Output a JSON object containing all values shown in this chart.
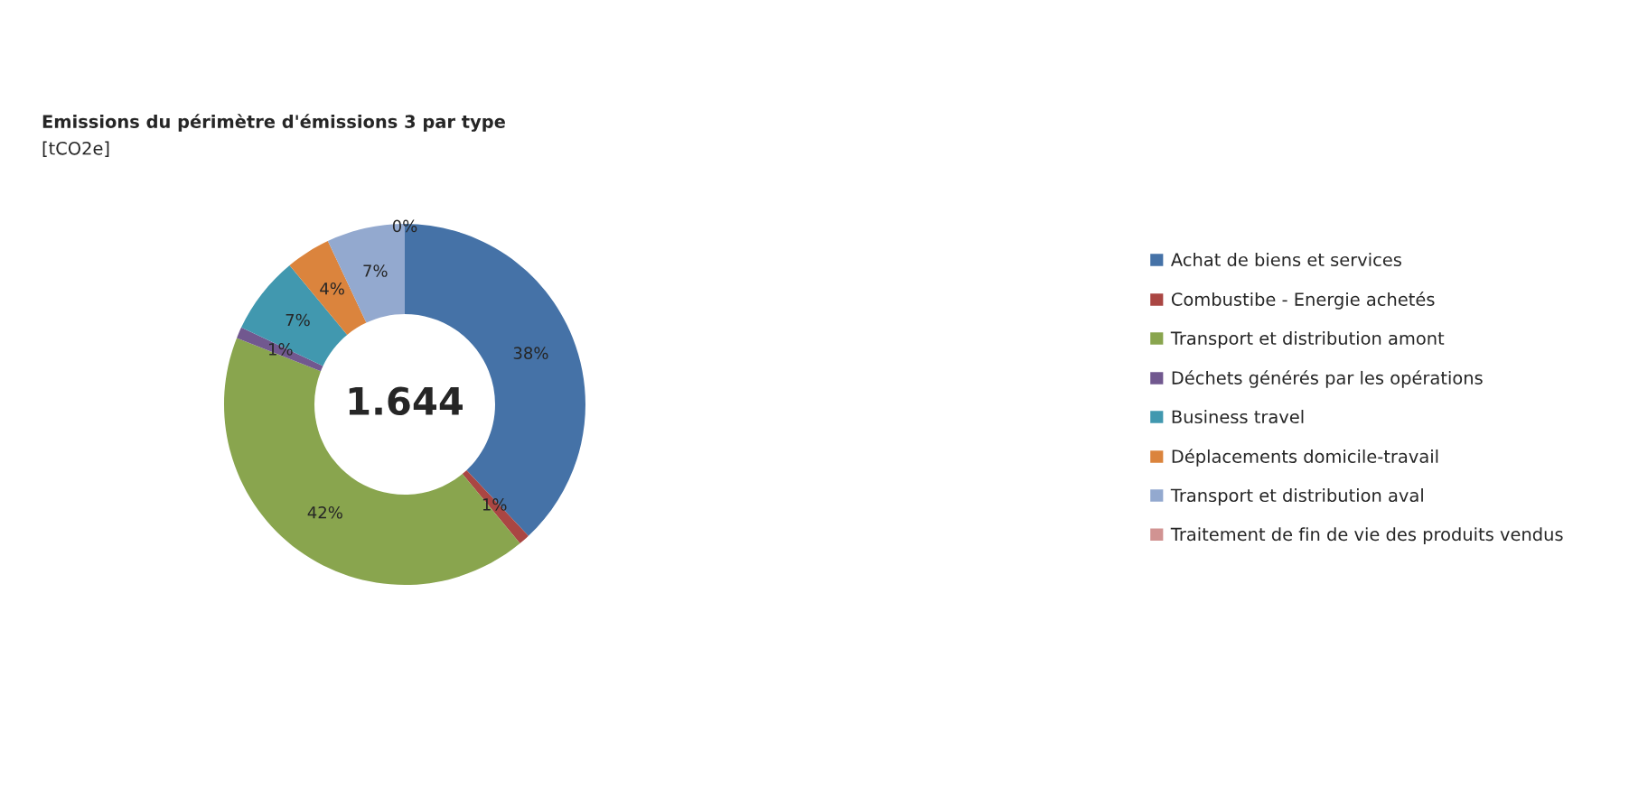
{
  "chart_data": {
    "type": "donut",
    "title": "Emissions du périmètre d'émissions 3 par type",
    "subtitle": "[tCO2e]",
    "categories": [
      "Achat de biens et services",
      "Combustibe - Energie achetés",
      "Transport et distribution amont",
      "Déchets générés par les opérations",
      "Business travel",
      "Déplacements domicile-travail",
      "Transport et distribution aval",
      "Traitement de fin de vie des produits vendus"
    ],
    "values": [
      38,
      1,
      42,
      1,
      7,
      4,
      7,
      0
    ],
    "value_labels": [
      "38%",
      "1%",
      "42%",
      "1%",
      "7%",
      "4%",
      "7%",
      "0%"
    ],
    "colors": [
      "#4572a7",
      "#aa4643",
      "#89a54e",
      "#71588f",
      "#4198af",
      "#db843d",
      "#93a9cf",
      "#d19392"
    ],
    "annotations": [
      "1.644"
    ],
    "legend": "right"
  }
}
